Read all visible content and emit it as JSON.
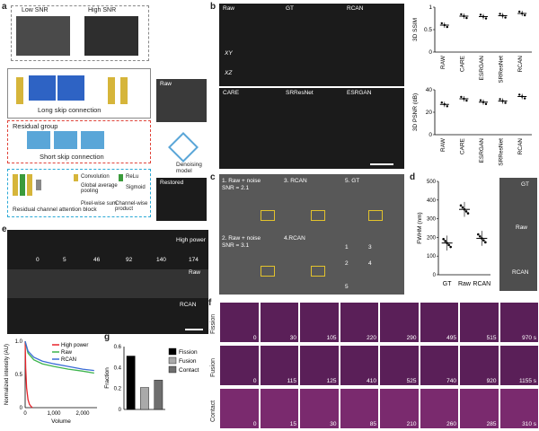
{
  "panels": {
    "a": {
      "label": "a",
      "low_snr": "Low SNR",
      "high_snr": "High SNR",
      "long_skip": "Long skip connection",
      "residual_group": "Residual group",
      "short_skip": "Short skip connection",
      "rcab": "Residual channel attention block",
      "legend": {
        "conv": "Convolution",
        "relu": "ReLu",
        "gap": "Global average pooling",
        "sigmoid": "Sigmoid",
        "pixel_sum": "Pixel-wise sum",
        "channel_product": "Channel-wise product"
      },
      "raw": "Raw",
      "denoising": "Denoising model",
      "restored": "Restored"
    },
    "b": {
      "label": "b",
      "raw": "Raw",
      "gt": "GT",
      "rcan": "RCAN",
      "xy": "XY",
      "xz": "XZ",
      "care": "CARE",
      "srresnet": "SRResNet",
      "esrgan": "ESRGAN"
    },
    "c": {
      "label": "c",
      "t1": "1. Raw + noise",
      "t1b": "SNR = 2.1",
      "t3": "3. RCAN",
      "t5": "5. GT",
      "t2": "2. Raw + noise",
      "t2b": "SNR = 3.1",
      "t4": "4.RCAN",
      "n1": "1",
      "n2": "2",
      "n3": "3",
      "n4": "4",
      "n5": "5"
    },
    "d": {
      "label": "d",
      "gt": "GT",
      "raw": "Raw",
      "rcan": "RCAN"
    },
    "e": {
      "label": "e",
      "high_power": "High power",
      "raw": "Raw",
      "rcan": "RCAN",
      "frames": [
        "0",
        "5",
        "46",
        "92",
        "140",
        "174"
      ]
    },
    "f": {
      "label": "f",
      "fission": "Fission",
      "fusion": "Fusion",
      "contact": "Contact",
      "fission_times": [
        "0",
        "30",
        "105",
        "220",
        "290",
        "495",
        "515",
        "970 s"
      ],
      "fusion_times": [
        "0",
        "115",
        "125",
        "410",
        "525",
        "740",
        "920",
        "1155 s"
      ],
      "contact_times": [
        "0",
        "15",
        "30",
        "85",
        "210",
        "260",
        "285",
        "310 s"
      ]
    },
    "g": {
      "label": "g"
    }
  },
  "chart_data": [
    {
      "id": "b-ssim",
      "type": "scatter",
      "categories": [
        "RAW",
        "CARE",
        "ESRGAN",
        "SRResNet",
        "RCAN"
      ],
      "ylabel": "3D SSIM",
      "ylim": [
        0,
        1
      ],
      "yticks": [
        "0",
        "0.5",
        "1"
      ],
      "series": [
        {
          "values": [
            0.6,
            0.8,
            0.79,
            0.81,
            0.86
          ]
        }
      ]
    },
    {
      "id": "b-psnr",
      "type": "scatter",
      "categories": [
        "RAW",
        "CARE",
        "ESRGAN",
        "SRResNet",
        "RCAN"
      ],
      "ylabel": "3D PSNR (dB)",
      "ylim": [
        0,
        40
      ],
      "yticks": [
        "0",
        "20",
        "40"
      ],
      "series": [
        {
          "values": [
            27,
            32,
            29,
            30,
            34
          ]
        }
      ]
    },
    {
      "id": "d-fwhm",
      "type": "scatter",
      "categories": [
        "GT",
        "Raw",
        "RCAN"
      ],
      "ylabel": "FWHM (nm)",
      "ylim": [
        0,
        500
      ],
      "yticks": [
        "0",
        "100",
        "200",
        "300",
        "400",
        "500"
      ],
      "series": [
        {
          "values": [
            170,
            350,
            195
          ]
        }
      ]
    },
    {
      "id": "e-intensity",
      "type": "line",
      "xlabel": "Volume",
      "ylabel": "Normalized intensity (AU)",
      "xlim": [
        0,
        2500
      ],
      "ylim": [
        0,
        1
      ],
      "xticks": [
        "0",
        "1,000",
        "2,000"
      ],
      "yticks": [
        "0",
        "0.5",
        "1.0"
      ],
      "series": [
        {
          "name": "High power",
          "color": "#e8232a",
          "x": [
            0,
            20,
            50,
            100,
            150,
            200,
            250
          ],
          "y": [
            1.0,
            0.6,
            0.3,
            0.12,
            0.05,
            0.02,
            0.0
          ]
        },
        {
          "name": "Raw",
          "color": "#3cb44b",
          "x": [
            0,
            100,
            300,
            600,
            1000,
            1500,
            2000,
            2400
          ],
          "y": [
            1.0,
            0.82,
            0.72,
            0.66,
            0.62,
            0.58,
            0.55,
            0.52
          ]
        },
        {
          "name": "RCAN",
          "color": "#3a6bd6",
          "x": [
            0,
            100,
            300,
            600,
            1000,
            1500,
            2000,
            2400
          ],
          "y": [
            1.0,
            0.85,
            0.76,
            0.7,
            0.66,
            0.62,
            0.58,
            0.56
          ]
        }
      ]
    },
    {
      "id": "g-fraction",
      "type": "bar",
      "ylabel": "Fraction",
      "ylim": [
        0,
        0.6
      ],
      "yticks": [
        "0",
        "0.2",
        "0.4",
        "0.6"
      ],
      "categories": [
        "Fission",
        "Fusion",
        "Contact"
      ],
      "values": [
        0.51,
        0.21,
        0.28
      ],
      "colors": [
        "#000000",
        "#aaaaaa",
        "#6e6e6e"
      ]
    }
  ]
}
